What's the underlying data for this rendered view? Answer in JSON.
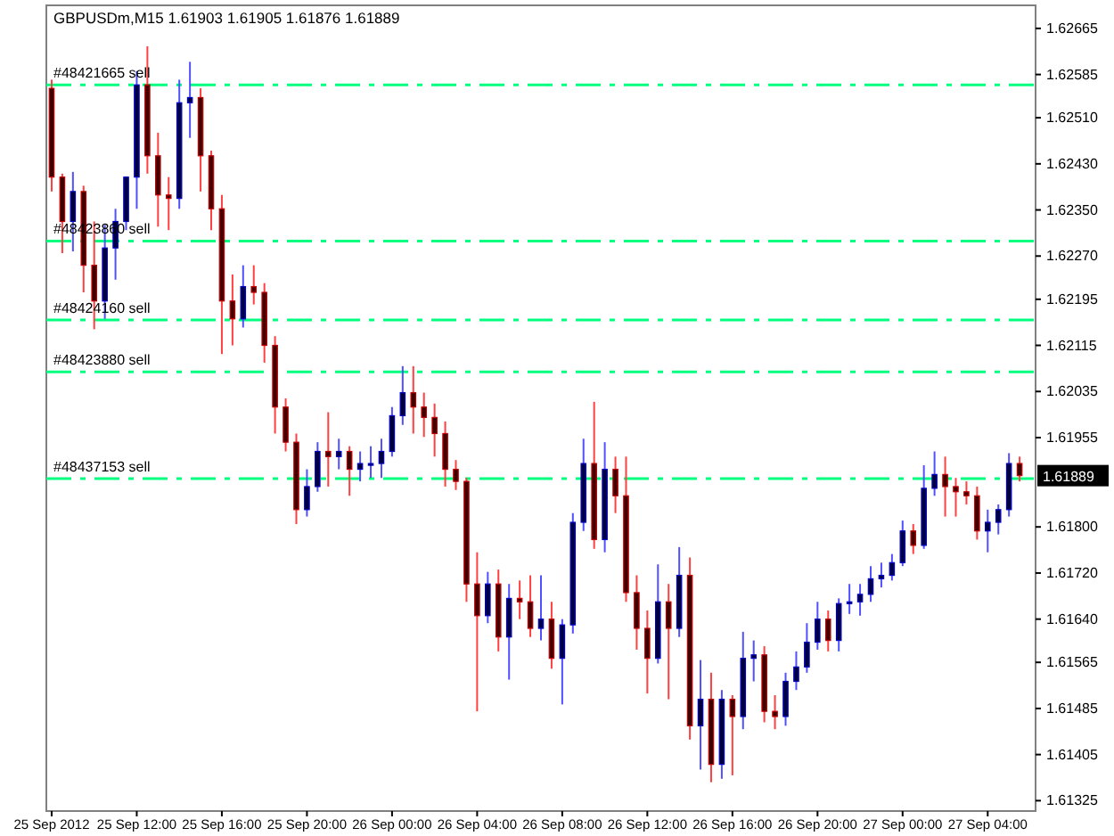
{
  "chart_data": {
    "type": "candlestick",
    "title": "GBPUSDm,M15  1.61903 1.61905 1.61876 1.61889",
    "x": [
      "2012-09-25T08:00",
      "2012-09-25T08:30",
      "2012-09-25T09:00",
      "2012-09-25T09:30",
      "2012-09-25T10:00",
      "2012-09-25T10:30",
      "2012-09-25T11:00",
      "2012-09-25T11:30",
      "2012-09-25T12:00",
      "2012-09-25T12:30",
      "2012-09-25T13:00",
      "2012-09-25T13:30",
      "2012-09-25T14:00",
      "2012-09-25T14:30",
      "2012-09-25T15:00",
      "2012-09-25T15:30",
      "2012-09-25T16:00",
      "2012-09-25T16:30",
      "2012-09-25T17:00",
      "2012-09-25T17:30",
      "2012-09-25T18:00",
      "2012-09-25T18:30",
      "2012-09-25T19:00",
      "2012-09-25T19:30",
      "2012-09-25T20:00",
      "2012-09-25T20:30",
      "2012-09-25T21:00",
      "2012-09-25T21:30",
      "2012-09-25T22:00",
      "2012-09-25T22:30",
      "2012-09-25T23:00",
      "2012-09-25T23:30",
      "2012-09-26T00:00",
      "2012-09-26T00:30",
      "2012-09-26T01:00",
      "2012-09-26T01:30",
      "2012-09-26T02:00",
      "2012-09-26T02:30",
      "2012-09-26T03:00",
      "2012-09-26T03:30",
      "2012-09-26T04:00",
      "2012-09-26T04:30",
      "2012-09-26T05:00",
      "2012-09-26T05:30",
      "2012-09-26T06:00",
      "2012-09-26T06:30",
      "2012-09-26T07:00",
      "2012-09-26T07:30",
      "2012-09-26T08:00",
      "2012-09-26T08:30",
      "2012-09-26T09:00",
      "2012-09-26T09:30",
      "2012-09-26T10:00",
      "2012-09-26T10:30",
      "2012-09-26T11:00",
      "2012-09-26T11:30",
      "2012-09-26T12:00",
      "2012-09-26T12:30",
      "2012-09-26T13:00",
      "2012-09-26T13:30",
      "2012-09-26T14:00",
      "2012-09-26T14:30",
      "2012-09-26T15:00",
      "2012-09-26T15:30",
      "2012-09-26T16:00",
      "2012-09-26T16:30",
      "2012-09-26T17:00",
      "2012-09-26T17:30",
      "2012-09-26T18:00",
      "2012-09-26T18:30",
      "2012-09-26T19:00",
      "2012-09-26T19:30",
      "2012-09-26T20:00",
      "2012-09-26T20:30",
      "2012-09-26T21:00",
      "2012-09-26T21:30",
      "2012-09-26T22:00",
      "2012-09-26T22:30",
      "2012-09-26T23:00",
      "2012-09-26T23:30",
      "2012-09-27T00:00",
      "2012-09-27T00:30",
      "2012-09-27T01:00",
      "2012-09-27T01:30",
      "2012-09-27T02:00",
      "2012-09-27T02:30",
      "2012-09-27T03:00",
      "2012-09-27T03:30",
      "2012-09-27T04:00",
      "2012-09-27T04:30",
      "2012-09-27T05:00",
      "2012-09-27T05:30"
    ],
    "ohlc": [
      [
        1.62561,
        1.62576,
        1.62382,
        1.62407
      ],
      [
        1.62407,
        1.62413,
        1.62275,
        1.6233
      ],
      [
        1.6233,
        1.62416,
        1.62278,
        1.62382
      ],
      [
        1.62382,
        1.62392,
        1.62207,
        1.62254
      ],
      [
        1.62254,
        1.6233,
        1.62143,
        1.62192
      ],
      [
        1.62192,
        1.62324,
        1.62161,
        1.62284
      ],
      [
        1.62284,
        1.62352,
        1.62229,
        1.6233
      ],
      [
        1.6233,
        1.62407,
        1.62315,
        1.62407
      ],
      [
        1.62407,
        1.62591,
        1.62352,
        1.62567
      ],
      [
        1.62567,
        1.62634,
        1.62413,
        1.62444
      ],
      [
        1.62444,
        1.62484,
        1.62321,
        1.62376
      ],
      [
        1.62376,
        1.62407,
        1.62315,
        1.6237
      ],
      [
        1.6237,
        1.62576,
        1.62352,
        1.62536
      ],
      [
        1.62536,
        1.62607,
        1.62475,
        1.62545
      ],
      [
        1.62545,
        1.62561,
        1.62382,
        1.62444
      ],
      [
        1.62444,
        1.62453,
        1.62315,
        1.62352
      ],
      [
        1.62352,
        1.62376,
        1.621,
        1.62192
      ],
      [
        1.62192,
        1.62238,
        1.62115,
        1.62161
      ],
      [
        1.62161,
        1.62254,
        1.62146,
        1.62217
      ],
      [
        1.62217,
        1.62254,
        1.62186,
        1.62207
      ],
      [
        1.62207,
        1.62223,
        1.62085,
        1.62115
      ],
      [
        1.62115,
        1.62131,
        1.61962,
        1.62008
      ],
      [
        1.62008,
        1.62023,
        1.61931,
        1.61947
      ],
      [
        1.61947,
        1.61962,
        1.61805,
        1.6183
      ],
      [
        1.6183,
        1.619,
        1.61818,
        1.6187
      ],
      [
        1.6187,
        1.61947,
        1.61861,
        1.61931
      ],
      [
        1.61931,
        1.61999,
        1.6187,
        1.61922
      ],
      [
        1.61922,
        1.61953,
        1.619,
        1.61931
      ],
      [
        1.61931,
        1.6194,
        1.61854,
        1.619
      ],
      [
        1.619,
        1.61931,
        1.61879,
        1.6191
      ],
      [
        1.6191,
        1.6194,
        1.61885,
        1.6191
      ],
      [
        1.6191,
        1.61953,
        1.61885,
        1.61931
      ],
      [
        1.61931,
        1.62008,
        1.61922,
        1.61993
      ],
      [
        1.61993,
        1.62079,
        1.61977,
        1.62033
      ],
      [
        1.62033,
        1.62079,
        1.61962,
        1.62008
      ],
      [
        1.62008,
        1.62033,
        1.61956,
        1.6199
      ],
      [
        1.6199,
        1.62014,
        1.61922,
        1.61962
      ],
      [
        1.61962,
        1.61983,
        1.6187,
        1.619
      ],
      [
        1.619,
        1.61916,
        1.61864,
        1.61879
      ],
      [
        1.61879,
        1.61885,
        1.6167,
        1.61701
      ],
      [
        1.61701,
        1.61756,
        1.6148,
        1.61646
      ],
      [
        1.61646,
        1.61722,
        1.61633,
        1.61701
      ],
      [
        1.61701,
        1.61726,
        1.61584,
        1.61609
      ],
      [
        1.61609,
        1.61701,
        1.61535,
        1.61676
      ],
      [
        1.61676,
        1.61707,
        1.6164,
        1.6167
      ],
      [
        1.6167,
        1.61716,
        1.61609,
        1.61624
      ],
      [
        1.61624,
        1.61716,
        1.61603,
        1.6164
      ],
      [
        1.6164,
        1.6167,
        1.61554,
        1.61572
      ],
      [
        1.61572,
        1.6164,
        1.61492,
        1.6163
      ],
      [
        1.6163,
        1.61824,
        1.61615,
        1.61808
      ],
      [
        1.61808,
        1.61953,
        1.61793,
        1.6191
      ],
      [
        1.6191,
        1.62017,
        1.61762,
        1.61778
      ],
      [
        1.61778,
        1.61947,
        1.61756,
        1.619
      ],
      [
        1.619,
        1.61922,
        1.61824,
        1.61854
      ],
      [
        1.61854,
        1.61922,
        1.6167,
        1.61686
      ],
      [
        1.61686,
        1.61716,
        1.61587,
        1.61624
      ],
      [
        1.61624,
        1.61655,
        1.61511,
        1.61572
      ],
      [
        1.61572,
        1.61735,
        1.61563,
        1.6167
      ],
      [
        1.6167,
        1.61701,
        1.61501,
        1.61624
      ],
      [
        1.61624,
        1.61765,
        1.61609,
        1.61716
      ],
      [
        1.61716,
        1.61747,
        1.61431,
        1.61455
      ],
      [
        1.61455,
        1.61569,
        1.61379,
        1.61501
      ],
      [
        1.61501,
        1.61547,
        1.61357,
        1.61388
      ],
      [
        1.61388,
        1.61517,
        1.61363,
        1.61501
      ],
      [
        1.61501,
        1.61508,
        1.61369,
        1.61471
      ],
      [
        1.61471,
        1.61618,
        1.61449,
        1.61572
      ],
      [
        1.61572,
        1.61603,
        1.61532,
        1.61578
      ],
      [
        1.61578,
        1.61593,
        1.61461,
        1.6148
      ],
      [
        1.6148,
        1.61508,
        1.61449,
        1.61471
      ],
      [
        1.61471,
        1.61547,
        1.61455,
        1.61532
      ],
      [
        1.61532,
        1.61584,
        1.61517,
        1.61557
      ],
      [
        1.61557,
        1.61633,
        1.61547,
        1.616
      ],
      [
        1.616,
        1.6167,
        1.61587,
        1.6164
      ],
      [
        1.6164,
        1.61655,
        1.61584,
        1.61603
      ],
      [
        1.61603,
        1.61676,
        1.61584,
        1.61667
      ],
      [
        1.61667,
        1.61701,
        1.61649,
        1.6167
      ],
      [
        1.6167,
        1.61701,
        1.61646,
        1.61683
      ],
      [
        1.61683,
        1.61732,
        1.6167,
        1.6171
      ],
      [
        1.6171,
        1.61738,
        1.61695,
        1.61716
      ],
      [
        1.61716,
        1.61753,
        1.61707,
        1.61738
      ],
      [
        1.61738,
        1.61811,
        1.61732,
        1.61793
      ],
      [
        1.61793,
        1.61805,
        1.61753,
        1.61768
      ],
      [
        1.61768,
        1.61907,
        1.61762,
        1.61867
      ],
      [
        1.61867,
        1.61931,
        1.61854,
        1.61891
      ],
      [
        1.61891,
        1.61922,
        1.61818,
        1.6187
      ],
      [
        1.6187,
        1.61885,
        1.61818,
        1.61861
      ],
      [
        1.61861,
        1.61879,
        1.61839,
        1.61854
      ],
      [
        1.61854,
        1.6187,
        1.61778,
        1.61793
      ],
      [
        1.61793,
        1.6183,
        1.61756,
        1.61808
      ],
      [
        1.61808,
        1.61839,
        1.61787,
        1.6183
      ],
      [
        1.6183,
        1.61928,
        1.61818,
        1.6191
      ],
      [
        1.6191,
        1.61922,
        1.61879,
        1.61889
      ]
    ],
    "xlim": [
      "2012-09-25T07:45",
      "2012-09-27T06:15"
    ],
    "xticks": [
      {
        "value": "2012-09-25T08:00",
        "label": "25 Sep 2012"
      },
      {
        "value": "2012-09-25T12:00",
        "label": "25 Sep 12:00"
      },
      {
        "value": "2012-09-25T16:00",
        "label": "25 Sep 16:00"
      },
      {
        "value": "2012-09-25T20:00",
        "label": "25 Sep 20:00"
      },
      {
        "value": "2012-09-26T00:00",
        "label": "26 Sep 00:00"
      },
      {
        "value": "2012-09-26T04:00",
        "label": "26 Sep 04:00"
      },
      {
        "value": "2012-09-26T08:00",
        "label": "26 Sep 08:00"
      },
      {
        "value": "2012-09-26T12:00",
        "label": "26 Sep 12:00"
      },
      {
        "value": "2012-09-26T16:00",
        "label": "26 Sep 16:00"
      },
      {
        "value": "2012-09-26T20:00",
        "label": "26 Sep 20:00"
      },
      {
        "value": "2012-09-27T00:00",
        "label": "27 Sep 00:00"
      },
      {
        "value": "2012-09-27T04:00",
        "label": "27 Sep 04:00"
      }
    ],
    "ylim": [
      1.61307,
      1.62705
    ],
    "yticks": [
      1.62665,
      1.62585,
      {
        "value": 1.6251,
        "label": "1.62510"
      },
      {
        "value": 1.6243,
        "label": "1.62430"
      },
      {
        "value": 1.6235,
        "label": "1.62350"
      },
      {
        "value": 1.6227,
        "label": "1.62270"
      },
      1.62195,
      1.62115,
      1.62035,
      1.61955,
      {
        "value": 1.618,
        "label": "1.61800"
      },
      {
        "value": 1.6172,
        "label": "1.61720"
      },
      {
        "value": 1.6164,
        "label": "1.61640"
      },
      1.61565,
      1.61485,
      1.61405,
      1.61325
    ],
    "ref_lines": [
      {
        "axis": "y",
        "value": 1.62567,
        "label": "#48421665 sell",
        "color": "#00ff7f",
        "line_style": "dashed"
      },
      {
        "axis": "y",
        "value": 1.62296,
        "label": "#48423860 sell",
        "color": "#00ff7f",
        "line_style": "dashed"
      },
      {
        "axis": "y",
        "value": 1.62159,
        "label": "#48424160 sell",
        "color": "#00ff7f",
        "line_style": "dashed"
      },
      {
        "axis": "y",
        "value": 1.62069,
        "label": "#48423880 sell",
        "color": "#00ff7f",
        "line_style": "dashed"
      },
      {
        "axis": "y",
        "value": 1.61884,
        "label": "#48437153 sell",
        "color": "#00ff7f",
        "line_style": "dashed"
      }
    ],
    "annotations": [
      "1.61889"
    ],
    "grid": false
  }
}
